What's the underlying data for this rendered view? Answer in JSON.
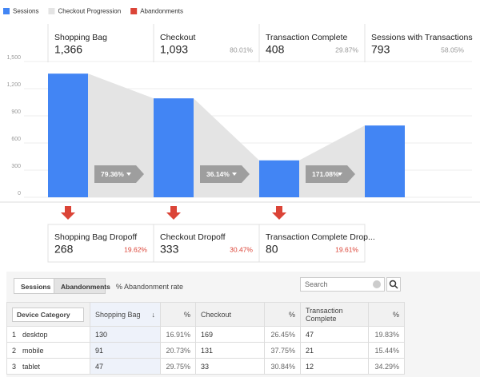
{
  "chart_data": {
    "type": "funnel",
    "legend": [
      {
        "name": "Sessions",
        "color": "#4285f4"
      },
      {
        "name": "Checkout Progression",
        "color": "#e4e4e4"
      },
      {
        "name": "Abandonments",
        "color": "#db4437"
      }
    ],
    "categories": [
      "Shopping Bag",
      "Checkout",
      "Transaction Complete",
      "Sessions with Transactions"
    ],
    "values": [
      1366,
      1093,
      408,
      793
    ],
    "value_labels": [
      "1,366",
      "1,093",
      "408",
      "793"
    ],
    "stage_percents": [
      null,
      "80.01%",
      "29.87%",
      "58.05%"
    ],
    "progression_labels": [
      "79.36%",
      "36.14%",
      "171.08%"
    ],
    "ylim": [
      0,
      1500
    ],
    "yticks": [
      0,
      300,
      600,
      900,
      {
        "value": 1200,
        "label": "1,200"
      },
      {
        "value": 1500,
        "label": "1,500"
      }
    ],
    "grid": true,
    "dropoffs": [
      {
        "label": "Shopping Bag Dropoff",
        "value": 268,
        "percent": "19.62%"
      },
      {
        "label": "Checkout Dropoff",
        "value": 333,
        "percent": "30.47%"
      },
      {
        "label": "Transaction Complete Drop...",
        "value": 80,
        "percent": "19.61%"
      }
    ]
  },
  "table": {
    "tabs": [
      "Sessions",
      "Abandonments"
    ],
    "metric": "% Abandonment rate",
    "search_placeholder": "Search",
    "header": [
      "Device Category",
      "Shopping Bag",
      "%",
      "Checkout",
      "%",
      "Transaction Complete",
      "%"
    ],
    "rows": [
      [
        "1",
        "desktop",
        "130",
        "16.91%",
        "169",
        "26.45%",
        "47",
        "19.83%"
      ],
      [
        "2",
        "mobile",
        "91",
        "20.73%",
        "131",
        "37.75%",
        "21",
        "15.44%"
      ],
      [
        "3",
        "tablet",
        "47",
        "29.75%",
        "33",
        "30.84%",
        "12",
        "34.29%"
      ]
    ]
  }
}
